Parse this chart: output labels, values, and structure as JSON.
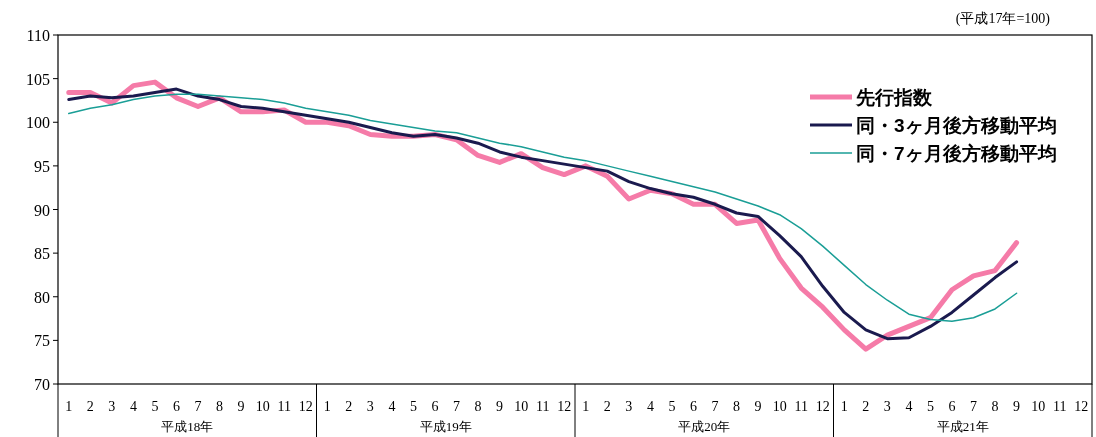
{
  "chart_data": {
    "type": "line",
    "categories": [
      "1",
      "2",
      "3",
      "4",
      "5",
      "6",
      "7",
      "8",
      "9",
      "10",
      "11",
      "12",
      "1",
      "2",
      "3",
      "4",
      "5",
      "6",
      "7",
      "8",
      "9",
      "10",
      "11",
      "12",
      "1",
      "2",
      "3",
      "4",
      "5",
      "6",
      "7",
      "8",
      "9",
      "10",
      "11",
      "12",
      "1",
      "2",
      "3",
      "4",
      "5",
      "6",
      "7",
      "8",
      "9",
      "10",
      "11",
      "12"
    ],
    "ylim": [
      70,
      110
    ],
    "yticks": [
      70,
      75,
      80,
      85,
      90,
      95,
      100,
      105,
      110
    ],
    "legend": "top right",
    "grid": false,
    "marker": "none",
    "line_style": "solid",
    "annotations": [
      "(平成17年=100)",
      "平成18年",
      "平成19年",
      "平成20年",
      "平成21年"
    ],
    "series": [
      {
        "name": "先行指数",
        "color": "#f57ba8",
        "values": [
          103.4,
          103.4,
          102.2,
          104.2,
          104.6,
          102.8,
          101.8,
          102.8,
          101.2,
          101.2,
          101.4,
          100.0,
          100.0,
          99.6,
          98.6,
          98.4,
          98.4,
          98.6,
          98.0,
          96.2,
          95.4,
          96.4,
          94.8,
          94.0,
          95.0,
          93.8,
          91.2,
          92.2,
          91.8,
          90.6,
          90.6,
          88.4,
          88.8,
          84.4,
          81.0,
          78.8,
          76.2,
          74.0,
          75.6,
          76.6,
          77.6,
          80.8,
          82.4,
          83.0,
          86.2,
          null,
          null,
          null
        ]
      },
      {
        "name": "同・3ヶ月後方移動平均",
        "color": "#1a1a4e",
        "values": [
          102.6,
          103.0,
          102.8,
          103.0,
          103.4,
          103.8,
          103.0,
          102.6,
          101.8,
          101.6,
          101.2,
          100.8,
          100.4,
          100.0,
          99.4,
          98.8,
          98.4,
          98.6,
          98.2,
          97.6,
          96.6,
          96.0,
          95.6,
          95.2,
          94.8,
          94.4,
          93.2,
          92.4,
          91.8,
          91.4,
          90.6,
          89.6,
          89.2,
          87.0,
          84.6,
          81.2,
          78.2,
          76.2,
          75.2,
          75.3,
          76.6,
          78.2,
          80.2,
          82.2,
          84.0,
          null,
          null,
          null
        ]
      },
      {
        "name": "同・7ヶ月後方移動平均",
        "color": "#1a9e96",
        "values": [
          101.0,
          101.6,
          102.0,
          102.6,
          103.0,
          103.2,
          103.2,
          103.0,
          102.8,
          102.6,
          102.2,
          101.6,
          101.2,
          100.8,
          100.2,
          99.8,
          99.4,
          99.0,
          98.8,
          98.2,
          97.6,
          97.2,
          96.6,
          96.0,
          95.6,
          95.0,
          94.4,
          93.8,
          93.2,
          92.6,
          92.0,
          91.2,
          90.4,
          89.4,
          87.8,
          85.8,
          83.6,
          81.4,
          79.6,
          78.0,
          77.4,
          77.2,
          77.6,
          78.6,
          80.4,
          null,
          null,
          null
        ]
      }
    ]
  }
}
